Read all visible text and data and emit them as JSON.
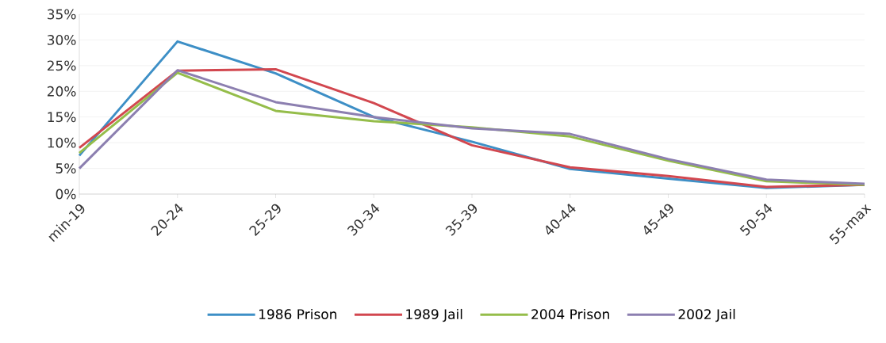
{
  "chart_data": {
    "type": "line",
    "categories": [
      "min-19",
      "20-24",
      "25-29",
      "30-34",
      "35-39",
      "40-44",
      "45-49",
      "50-54",
      "55-max"
    ],
    "series": [
      {
        "name": "1986 Prison",
        "color": "#3d8fc6",
        "values": [
          7.5,
          29.7,
          23.5,
          15,
          10.2,
          4.9,
          3,
          1.2,
          1.8
        ]
      },
      {
        "name": "1989 Jail",
        "color": "#d2474f",
        "values": [
          9,
          24,
          24.3,
          17.7,
          9.5,
          5.2,
          3.5,
          1.4,
          1.8
        ]
      },
      {
        "name": "2004 Prison",
        "color": "#95bd4a",
        "values": [
          8,
          23.6,
          16.2,
          14.2,
          13,
          11.2,
          6.5,
          2.5,
          1.8
        ]
      },
      {
        "name": "2002 Jail",
        "color": "#8c7fb0",
        "values": [
          5,
          24.1,
          17.9,
          15,
          12.8,
          11.7,
          6.8,
          2.8,
          2.0
        ]
      }
    ],
    "ylim": [
      0,
      35
    ],
    "yticks": [
      {
        "value": 0,
        "label": "0%"
      },
      {
        "value": 5,
        "label": "5%"
      },
      {
        "value": 10,
        "label": "10%"
      },
      {
        "value": 15,
        "label": "15%"
      },
      {
        "value": 20,
        "label": "20%"
      },
      {
        "value": 25,
        "label": "25%"
      },
      {
        "value": 30,
        "label": "30%"
      },
      {
        "value": 35,
        "label": "35%"
      }
    ],
    "grid": "y",
    "legend": "bottom",
    "marker": "none",
    "line_style": "solid"
  }
}
